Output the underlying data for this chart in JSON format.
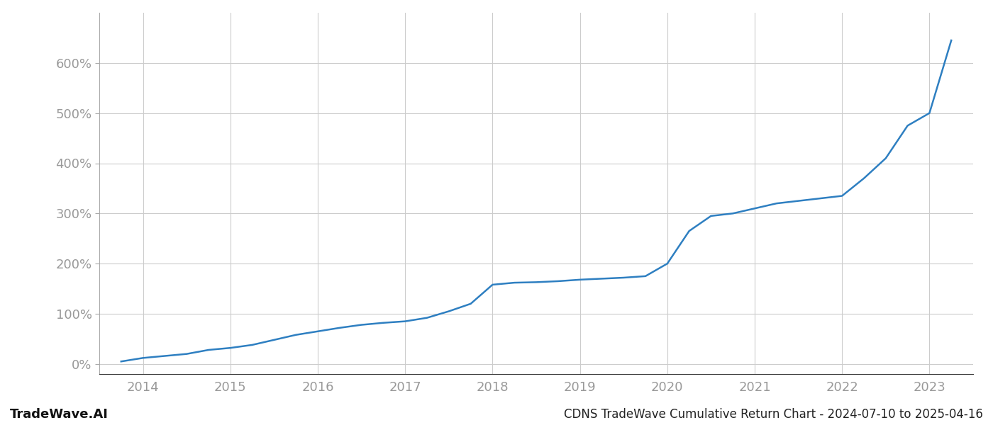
{
  "title": "CDNS TradeWave Cumulative Return Chart - 2024-07-10 to 2025-04-16",
  "watermark": "TradeWave.AI",
  "line_color": "#2e7fc1",
  "background_color": "#ffffff",
  "grid_color": "#cccccc",
  "x_years": [
    2013.75,
    2014.0,
    2014.25,
    2014.5,
    2014.75,
    2015.0,
    2015.25,
    2015.5,
    2015.75,
    2016.0,
    2016.25,
    2016.5,
    2016.75,
    2017.0,
    2017.25,
    2017.5,
    2017.75,
    2018.0,
    2018.25,
    2018.5,
    2018.75,
    2019.0,
    2019.25,
    2019.5,
    2019.75,
    2020.0,
    2020.25,
    2020.5,
    2020.75,
    2021.0,
    2021.25,
    2021.5,
    2021.75,
    2022.0,
    2022.25,
    2022.5,
    2022.75,
    2023.0,
    2023.25
  ],
  "y_values": [
    5,
    12,
    16,
    20,
    28,
    32,
    38,
    48,
    58,
    65,
    72,
    78,
    82,
    85,
    92,
    105,
    120,
    158,
    162,
    163,
    165,
    168,
    170,
    172,
    175,
    200,
    265,
    295,
    300,
    310,
    320,
    325,
    330,
    335,
    370,
    410,
    475,
    500,
    645
  ],
  "xlim": [
    2013.5,
    2023.5
  ],
  "ylim": [
    -20,
    700
  ],
  "yticks": [
    0,
    100,
    200,
    300,
    400,
    500,
    600
  ],
  "xticks": [
    2014,
    2015,
    2016,
    2017,
    2018,
    2019,
    2020,
    2021,
    2022,
    2023
  ],
  "tick_fontsize": 13,
  "title_fontsize": 12,
  "watermark_fontsize": 13,
  "line_width": 1.8,
  "axis_label_color": "#999999",
  "title_color": "#222222",
  "watermark_color": "#111111"
}
